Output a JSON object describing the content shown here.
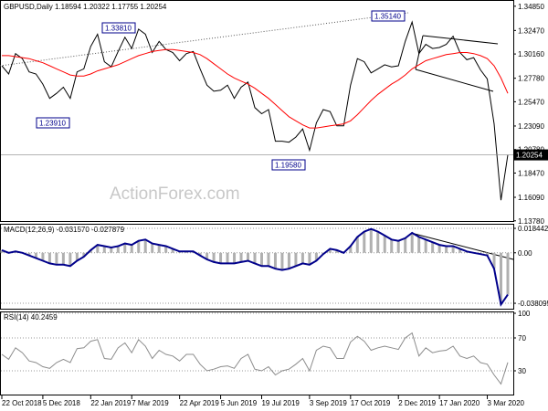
{
  "chart_data": [
    {
      "type": "line",
      "title": "GBPUSD,Daily 1.18594 1.20322 1.17755 1.20254",
      "watermark": "ActionForex.com",
      "ylim": [
        1.1376,
        1.3546
      ],
      "yticks": [
        {
          "value": 1.3485,
          "label": "1.34850"
        },
        {
          "value": 1.3247,
          "label": "1.32470"
        },
        {
          "value": 1.3016,
          "label": "1.30160"
        },
        {
          "value": 1.2778,
          "label": "1.27780"
        },
        {
          "value": 1.2547,
          "label": "1.25470"
        },
        {
          "value": 1.2309,
          "label": "1.23090"
        },
        {
          "value": 1.2078,
          "label": "1.20780"
        },
        {
          "value": 1.1847,
          "label": "1.18470"
        },
        {
          "value": 1.1609,
          "label": "1.16090"
        },
        {
          "value": 1.1378,
          "label": "1.13780"
        }
      ],
      "last_price": 1.20254,
      "annotations": [
        "1.33810",
        "1.23910",
        "1.35140",
        "1.19580"
      ],
      "series": [
        {
          "color": "#000000",
          "values": [
            1.29,
            1.282,
            1.302,
            1.297,
            1.284,
            1.282,
            1.272,
            1.258,
            1.263,
            1.269,
            1.258,
            1.284,
            1.287,
            1.309,
            1.321,
            1.294,
            1.289,
            1.304,
            1.318,
            1.307,
            1.326,
            1.321,
            1.303,
            1.314,
            1.306,
            1.303,
            1.295,
            1.302,
            1.304,
            1.287,
            1.271,
            1.265,
            1.266,
            1.271,
            1.258,
            1.269,
            1.274,
            1.249,
            1.243,
            1.247,
            1.216,
            1.216,
            1.215,
            1.22,
            1.228,
            1.207,
            1.234,
            1.247,
            1.245,
            1.231,
            1.231,
            1.271,
            1.297,
            1.294,
            1.283,
            1.287,
            1.291,
            1.289,
            1.29,
            1.314,
            1.333,
            1.302,
            1.311,
            1.307,
            1.308,
            1.311,
            1.319,
            1.303,
            1.296,
            1.298,
            1.286,
            1.277,
            1.233,
            1.158,
            1.20254
          ]
        },
        {
          "color": "#ff0000",
          "values": [
            1.3,
            1.3,
            1.299,
            1.298,
            1.297,
            1.295,
            1.293,
            1.29,
            1.287,
            1.284,
            1.281,
            1.28,
            1.28,
            1.282,
            1.285,
            1.287,
            1.289,
            1.291,
            1.294,
            1.297,
            1.3,
            1.302,
            1.304,
            1.305,
            1.306,
            1.306,
            1.305,
            1.304,
            1.303,
            1.301,
            1.297,
            1.292,
            1.287,
            1.282,
            1.278,
            1.275,
            1.272,
            1.268,
            1.263,
            1.258,
            1.252,
            1.246,
            1.24,
            1.236,
            1.232,
            1.229,
            1.229,
            1.23,
            1.231,
            1.232,
            1.233,
            1.236,
            1.242,
            1.249,
            1.256,
            1.262,
            1.267,
            1.272,
            1.276,
            1.281,
            1.287,
            1.291,
            1.295,
            1.297,
            1.299,
            1.301,
            1.302,
            1.303,
            1.303,
            1.302,
            1.3,
            1.297,
            1.29,
            1.278,
            1.263
          ]
        }
      ]
    },
    {
      "type": "line",
      "title": "MACD(12,26,9) -0.031570 -0.027879",
      "ylim": [
        -0.0422,
        0.0219
      ],
      "yticks": [
        0.018442,
        {
          "value": 0,
          "label": "0.00"
        },
        -0.038095
      ],
      "series": [
        {
          "color": "#00008b",
          "values": [
            0.002,
            0.0,
            0.001,
            0.0,
            -0.002,
            -0.004,
            -0.006,
            -0.008,
            -0.009,
            -0.009,
            -0.01,
            -0.006,
            -0.003,
            0.002,
            0.006,
            0.005,
            0.004,
            0.005,
            0.007,
            0.006,
            0.009,
            0.01,
            0.007,
            0.006,
            0.005,
            0.003,
            0.001,
            0.001,
            0.001,
            -0.002,
            -0.005,
            -0.007,
            -0.008,
            -0.008,
            -0.008,
            -0.007,
            -0.006,
            -0.008,
            -0.01,
            -0.01,
            -0.012,
            -0.013,
            -0.012,
            -0.01,
            -0.008,
            -0.009,
            -0.006,
            -0.001,
            0.003,
            0.002,
            0.0,
            0.005,
            0.012,
            0.016,
            0.018,
            0.016,
            0.013,
            0.01,
            0.009,
            0.011,
            0.015,
            0.012,
            0.01,
            0.008,
            0.006,
            0.005,
            0.005,
            0.003,
            0.001,
            0.0,
            -0.001,
            -0.002,
            -0.012,
            -0.039,
            -0.03157
          ]
        }
      ]
    },
    {
      "type": "line",
      "title": "RSI(14) 40.2459",
      "ylim": [
        0,
        100
      ],
      "yticks": [
        100,
        70,
        30
      ],
      "categories": [
        "22 Oct 2018",
        null,
        null,
        null,
        null,
        null,
        "5 Dec 2018",
        null,
        null,
        null,
        null,
        null,
        null,
        "22 Jan 2019",
        null,
        null,
        null,
        null,
        null,
        "7 Mar 2019",
        null,
        null,
        null,
        null,
        null,
        null,
        "22 Apr 2019",
        null,
        null,
        null,
        null,
        null,
        "5 Jun 2019",
        null,
        null,
        null,
        null,
        null,
        "19 Jul 2019",
        null,
        null,
        null,
        null,
        null,
        null,
        "3 Sep 2019",
        null,
        null,
        null,
        null,
        null,
        "17 Oct 2019",
        null,
        null,
        null,
        null,
        null,
        null,
        "2 Dec 2019",
        null,
        null,
        null,
        null,
        null,
        "17 Jan 2020",
        null,
        null,
        null,
        null,
        null,
        null,
        "3 Mar 2020",
        null,
        null,
        null
      ],
      "series": [
        {
          "color": "#8c8c8c",
          "values": [
            50,
            44,
            58,
            52,
            42,
            40,
            35,
            33,
            40,
            44,
            40,
            57,
            58,
            66,
            68,
            45,
            44,
            58,
            64,
            52,
            68,
            60,
            45,
            55,
            50,
            48,
            42,
            50,
            50,
            38,
            30,
            32,
            35,
            36,
            33,
            45,
            50,
            32,
            30,
            35,
            25,
            30,
            32,
            38,
            45,
            30,
            55,
            60,
            58,
            45,
            45,
            65,
            72,
            66,
            55,
            58,
            60,
            58,
            56,
            70,
            76,
            48,
            58,
            52,
            54,
            55,
            60,
            48,
            45,
            48,
            40,
            38,
            25,
            14,
            40.2459
          ]
        }
      ]
    }
  ]
}
